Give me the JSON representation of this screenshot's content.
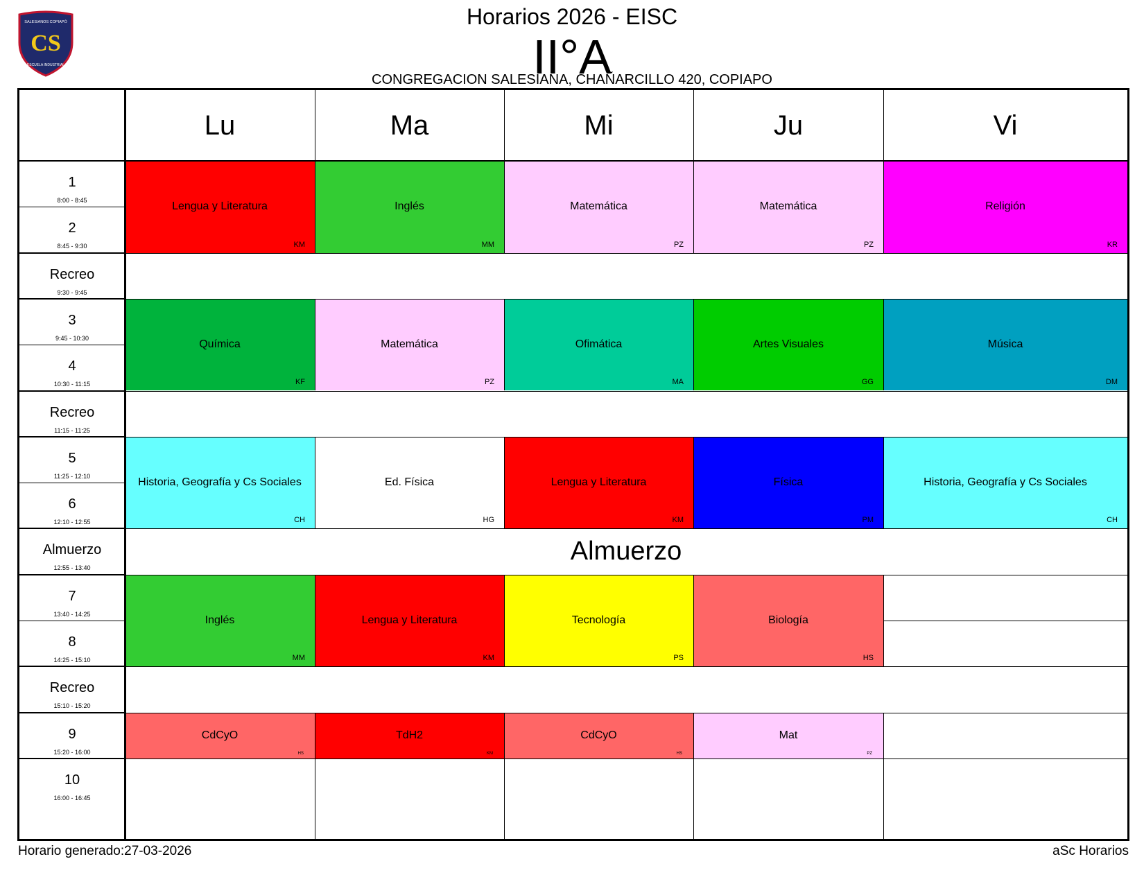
{
  "header": {
    "title": "Horarios 2026 - EISC",
    "class_name": "II°A",
    "address": "CONGREGACION SALESIANA, CHAÑARCILLO 420, COPIAPO",
    "logo": {
      "top_text": "SALESIANOS COPIAPÓ",
      "monogram": "CS",
      "bottom_text": "ESCUELA INDUSTRIAL",
      "colors": {
        "shield": "#1f2a6b",
        "border": "#c0152f",
        "monogram": "#f2c81a"
      }
    }
  },
  "days": [
    "Lu",
    "Ma",
    "Mi",
    "Ju",
    "Vi"
  ],
  "rows": [
    {
      "label": "1",
      "time": "8:00 - 8:45"
    },
    {
      "label": "2",
      "time": "8:45 - 9:30"
    },
    {
      "label": "Recreo",
      "time": "9:30 - 9:45"
    },
    {
      "label": "3",
      "time": "9:45 - 10:30"
    },
    {
      "label": "4",
      "time": "10:30 - 11:15"
    },
    {
      "label": "Recreo",
      "time": "11:15 - 11:25"
    },
    {
      "label": "5",
      "time": "11:25 - 12:10"
    },
    {
      "label": "6",
      "time": "12:10 - 12:55"
    },
    {
      "label": "Almuerzo",
      "time": "12:55 - 13:40"
    },
    {
      "label": "7",
      "time": "13:40 - 14:25"
    },
    {
      "label": "8",
      "time": "14:25 - 15:10"
    },
    {
      "label": "Recreo",
      "time": "15:10 - 15:20"
    },
    {
      "label": "9",
      "time": "15:20 - 16:00"
    },
    {
      "label": "10",
      "time": "16:00 - 16:45"
    }
  ],
  "lunch_label": "Almuerzo",
  "lessons": {
    "block1": [
      {
        "subject": "Lengua y Literatura",
        "teacher": "KM",
        "color": "#ff0000"
      },
      {
        "subject": "Inglés",
        "teacher": "MM",
        "color": "#33cc33"
      },
      {
        "subject": "Matemática",
        "teacher": "PZ",
        "color": "#ffccff"
      },
      {
        "subject": "Matemática",
        "teacher": "PZ",
        "color": "#ffccff"
      },
      {
        "subject": "Religión",
        "teacher": "KR",
        "color": "#ff00ff"
      }
    ],
    "block2": [
      {
        "subject": "Química",
        "teacher": "KF",
        "color": "#00b33c"
      },
      {
        "subject": "Matemática",
        "teacher": "PZ",
        "color": "#ffccff"
      },
      {
        "subject": "Ofimática",
        "teacher": "MA",
        "color": "#00cc99"
      },
      {
        "subject": "Artes Visuales",
        "teacher": "GG",
        "color": "#00cc00"
      },
      {
        "subject": "Música",
        "teacher": "DM",
        "color": "#00a0c0"
      }
    ],
    "block3": [
      {
        "subject": "Historia, Geografía y Cs Sociales",
        "teacher": "CH",
        "color": "#66ffff"
      },
      {
        "subject": "Ed. Física",
        "teacher": "HG",
        "color": "#ffffff"
      },
      {
        "subject": "Lengua y Literatura",
        "teacher": "KM",
        "color": "#ff0000"
      },
      {
        "subject": "Física",
        "teacher": "PM",
        "color": "#0000ff"
      },
      {
        "subject": "Historia, Geografía y Cs Sociales",
        "teacher": "CH",
        "color": "#66ffff"
      }
    ],
    "block4": [
      {
        "subject": "Inglés",
        "teacher": "MM",
        "color": "#33cc33"
      },
      {
        "subject": "Lengua y Literatura",
        "teacher": "KM",
        "color": "#ff0000"
      },
      {
        "subject": "Tecnología",
        "teacher": "PS",
        "color": "#ffff00"
      },
      {
        "subject": "Biología",
        "teacher": "HS",
        "color": "#ff6666"
      }
    ],
    "block5": [
      {
        "subject": "CdCyO",
        "teacher": "HS",
        "color": "#ff6666"
      },
      {
        "subject": "TdH2",
        "teacher": "KM",
        "color": "#ff0000"
      },
      {
        "subject": "CdCyO",
        "teacher": "HS",
        "color": "#ff6666"
      },
      {
        "subject": "Mat",
        "teacher": "PZ",
        "color": "#ffccff"
      }
    ]
  },
  "footer": {
    "generated": "Horario generado:27-03-2026",
    "credit": "aSc Horarios"
  }
}
